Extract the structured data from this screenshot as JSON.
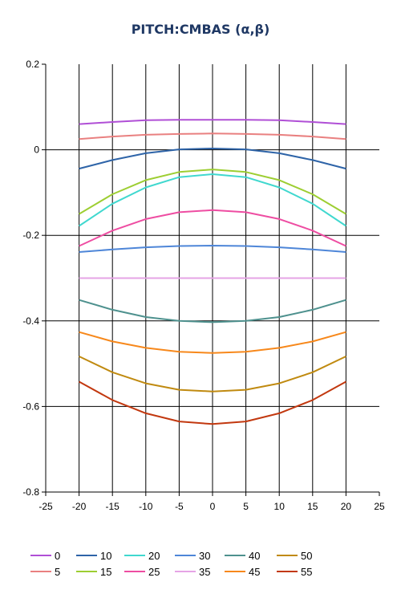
{
  "chart_data": {
    "type": "line",
    "title": "PITCH:CMBAS (α,β)",
    "xlabel": "",
    "ylabel": "",
    "xlim": [
      -25,
      25
    ],
    "ylim": [
      -0.8,
      0.2
    ],
    "x_ticks": [
      "-25",
      "-20",
      "-15",
      "-10",
      "-5",
      "0",
      "5",
      "10",
      "15",
      "20",
      "25"
    ],
    "y_ticks": [
      "0.2",
      "0",
      "-0.2",
      "-0.4",
      "-0.6",
      "-0.8"
    ],
    "grid": true,
    "legend_position": "bottom",
    "x": [
      -20,
      -15,
      -10,
      -5,
      0,
      5,
      10,
      15,
      20
    ],
    "series": [
      {
        "name": "0",
        "color": "#b04fd6",
        "values": [
          0.06,
          0.065,
          0.069,
          0.07,
          0.07,
          0.07,
          0.069,
          0.065,
          0.06
        ]
      },
      {
        "name": "5",
        "color": "#e98080",
        "values": [
          0.025,
          0.031,
          0.035,
          0.037,
          0.038,
          0.037,
          0.035,
          0.031,
          0.025
        ]
      },
      {
        "name": "10",
        "color": "#2e64a8",
        "values": [
          -0.044,
          -0.024,
          -0.008,
          0.001,
          0.003,
          0.001,
          -0.008,
          -0.024,
          -0.044
        ]
      },
      {
        "name": "15",
        "color": "#9dce32",
        "values": [
          -0.15,
          -0.104,
          -0.071,
          -0.052,
          -0.046,
          -0.052,
          -0.071,
          -0.104,
          -0.15
        ]
      },
      {
        "name": "20",
        "color": "#40d8cf",
        "values": [
          -0.178,
          -0.126,
          -0.088,
          -0.064,
          -0.057,
          -0.064,
          -0.088,
          -0.126,
          -0.178
        ]
      },
      {
        "name": "25",
        "color": "#ee4da2",
        "values": [
          -0.225,
          -0.189,
          -0.162,
          -0.146,
          -0.141,
          -0.146,
          -0.162,
          -0.189,
          -0.225
        ]
      },
      {
        "name": "30",
        "color": "#4e86d8",
        "values": [
          -0.239,
          -0.233,
          -0.228,
          -0.225,
          -0.224,
          -0.225,
          -0.228,
          -0.233,
          -0.239
        ]
      },
      {
        "name": "35",
        "color": "#e6a4e6",
        "values": [
          -0.3,
          -0.3,
          -0.3,
          -0.3,
          -0.3,
          -0.3,
          -0.3,
          -0.3,
          -0.3
        ]
      },
      {
        "name": "40",
        "color": "#4e918e",
        "values": [
          -0.351,
          -0.374,
          -0.391,
          -0.4,
          -0.403,
          -0.4,
          -0.391,
          -0.374,
          -0.351
        ]
      },
      {
        "name": "45",
        "color": "#f7881b",
        "values": [
          -0.426,
          -0.448,
          -0.463,
          -0.472,
          -0.475,
          -0.472,
          -0.463,
          -0.448,
          -0.426
        ]
      },
      {
        "name": "50",
        "color": "#c08a10",
        "values": [
          -0.483,
          -0.52,
          -0.546,
          -0.561,
          -0.565,
          -0.561,
          -0.546,
          -0.52,
          -0.483
        ]
      },
      {
        "name": "55",
        "color": "#c2380f",
        "values": [
          -0.542,
          -0.585,
          -0.616,
          -0.635,
          -0.641,
          -0.635,
          -0.616,
          -0.585,
          -0.542
        ]
      }
    ]
  }
}
